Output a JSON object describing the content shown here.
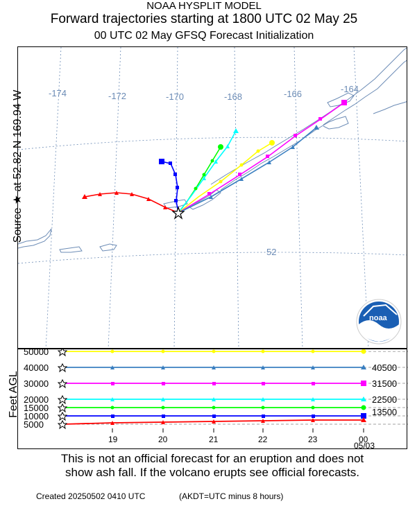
{
  "header": {
    "line1": "NOAA HYSPLIT MODEL",
    "line2": "Forward trajectories starting at 1800 UTC 02 May 25",
    "line3": "00 UTC 02 May    GFSQ  Forecast Initialization"
  },
  "source_label": "Source ★ at   52.82 N  169.94 W",
  "map": {
    "longitude_labels": [
      "-174",
      "-172",
      "-170",
      "-168",
      "-166",
      "-164"
    ],
    "latitude_labels": [
      "52"
    ],
    "logo_text": "noaa",
    "source_marker": "source-star"
  },
  "altitude_panel": {
    "axis_title": "Feet AGL",
    "left_ticks": [
      "50000",
      "40000",
      "30000",
      "20000",
      "15000",
      "10000",
      "5000"
    ],
    "right_labels": [
      "40500",
      "31500",
      "22500",
      "13500"
    ],
    "time_ticks": [
      "19",
      "20",
      "21",
      "22",
      "23",
      "00"
    ],
    "time_sublabel": "05/03"
  },
  "disclaimer": {
    "line1": "This is not an official forecast for an eruption and does not",
    "line2": "show ash fall. If the volcano erupts see official forecasts."
  },
  "footer": {
    "created": "Created 20250502 0410 UTC",
    "note": "(AKDT=UTC minus 8 hours)"
  },
  "colors": {
    "red": "#ff0000",
    "blue": "#0000ff",
    "green": "#00ff00",
    "cyan": "#00ffff",
    "yellow": "#ffff00",
    "magenta": "#ff00ff",
    "steelblue": "#3a7fc0",
    "coast": "#6b8bb5",
    "grid": "#6b8bb5"
  }
}
